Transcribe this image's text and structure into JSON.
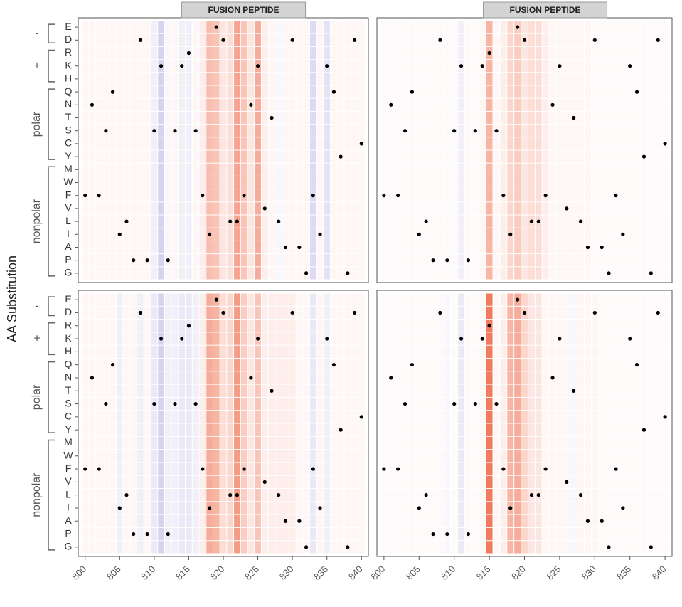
{
  "y_label": "AA Substitution",
  "groups": [
    {
      "label": "-",
      "rows": [
        "E",
        "D"
      ]
    },
    {
      "label": "+",
      "rows": [
        "R",
        "K",
        "H"
      ]
    },
    {
      "label": "polar",
      "rows": [
        "Q",
        "N",
        "T",
        "S",
        "C",
        "Y"
      ]
    },
    {
      "label": "nonpolar",
      "rows": [
        "M",
        "W",
        "F",
        "V",
        "L",
        "I",
        "A",
        "P",
        "G"
      ]
    }
  ],
  "positions": [
    800,
    801,
    802,
    803,
    804,
    805,
    806,
    807,
    808,
    809,
    810,
    811,
    812,
    813,
    814,
    815,
    816,
    817,
    818,
    819,
    820,
    821,
    822,
    823,
    824,
    825,
    826,
    827,
    828,
    829,
    830,
    831,
    832,
    833,
    834,
    835,
    836,
    837,
    838,
    839,
    840
  ],
  "wildtype": [
    "F",
    "N",
    "F",
    "S",
    "Q",
    "I",
    "L",
    "P",
    "D",
    "P",
    "S",
    "K",
    "P",
    "S",
    "K",
    "R",
    "S",
    "F",
    "I",
    "E",
    "D",
    "L",
    "L",
    "F",
    "N",
    "K",
    "V",
    "T",
    "L",
    "A",
    "D",
    "A",
    "G",
    "F",
    "I",
    "K",
    "Q",
    "Y",
    "G",
    "D",
    "C"
  ],
  "xlim": [
    799,
    841
  ],
  "xticks": [
    800,
    805,
    810,
    815,
    820,
    825,
    830,
    835,
    840
  ],
  "pos_color": "#ee5a36",
  "neg_color": "#7a6cc8",
  "chart_data": [
    {
      "type": "heatmap",
      "strip": "FUSION PEPTIDE",
      "values": [
        0.05,
        0.05,
        0.05,
        0.05,
        0.05,
        0.05,
        0.05,
        0.05,
        0.05,
        0.05,
        -0.1,
        -0.3,
        -0.05,
        0.05,
        -0.1,
        -0.1,
        0.05,
        0.1,
        0.4,
        0.35,
        0.15,
        0.2,
        0.55,
        0.35,
        0.15,
        0.5,
        0.1,
        0.05,
        -0.05,
        0.05,
        0.05,
        0.05,
        0.05,
        -0.25,
        0.05,
        -0.2,
        0.05,
        0.05,
        0.05,
        0.05,
        0.05
      ]
    },
    {
      "type": "heatmap",
      "strip": "FUSION PEPTIDE",
      "values": [
        0.03,
        0.03,
        0.03,
        0.03,
        0.03,
        0.03,
        0.03,
        0.03,
        0.03,
        0.03,
        0.03,
        -0.1,
        0.03,
        0.03,
        0.05,
        0.45,
        0.05,
        0.1,
        0.25,
        0.3,
        0.15,
        0.2,
        0.2,
        0.1,
        0.05,
        0.05,
        0.05,
        0.05,
        0.05,
        0.05,
        0.03,
        0.03,
        0.03,
        0.03,
        0.03,
        0.03,
        0.03,
        0.03,
        0.03,
        0.03,
        0.03
      ]
    },
    {
      "type": "heatmap",
      "values": [
        0.05,
        0.05,
        0.05,
        0.05,
        0.05,
        -0.1,
        0.05,
        0.05,
        -0.1,
        0.05,
        -0.15,
        -0.3,
        -0.1,
        -0.1,
        -0.15,
        -0.15,
        -0.1,
        0.1,
        0.5,
        0.45,
        0.2,
        0.25,
        0.6,
        0.3,
        0.15,
        0.35,
        0.1,
        0.1,
        0.1,
        0.1,
        0.1,
        0.05,
        0.05,
        -0.15,
        0.05,
        -0.1,
        0.05,
        0.05,
        0.05,
        0.05,
        0.05
      ]
    },
    {
      "type": "heatmap",
      "values": [
        0.03,
        0.03,
        0.03,
        0.03,
        0.03,
        0.03,
        0.03,
        0.03,
        0.03,
        -0.05,
        0.03,
        -0.15,
        0.03,
        0.03,
        0.05,
        0.8,
        0.05,
        0.1,
        0.45,
        0.5,
        0.25,
        0.15,
        0.15,
        0.05,
        0.05,
        0.05,
        0.05,
        -0.05,
        0.05,
        0.05,
        0.05,
        0.03,
        0.03,
        0.03,
        0.03,
        0.03,
        0.03,
        0.03,
        0.03,
        0.03,
        0.03
      ]
    }
  ]
}
